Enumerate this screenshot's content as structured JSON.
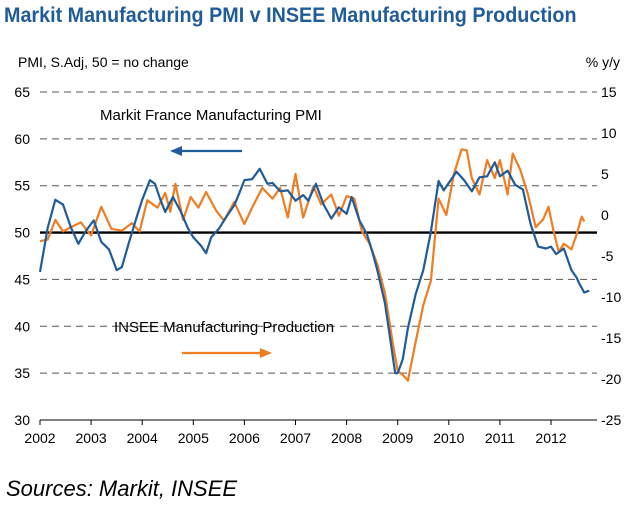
{
  "title": "Markit Manufacturing PMI v INSEE Manufacturing Production",
  "source": "Sources: Markit, INSEE",
  "colors": {
    "pmi": "#1f5c99",
    "production": "#f07d22",
    "title": "#1f5c99",
    "grid": "#555555",
    "fifty_line": "#000000"
  },
  "chart_data": {
    "type": "line",
    "title": "Markit Manufacturing PMI v INSEE Manufacturing Production",
    "left_axis": {
      "label": "PMI, S.Adj, 50 = no change",
      "ylim": [
        30,
        65
      ],
      "ticks": [
        30,
        35,
        40,
        45,
        50,
        55,
        60,
        65
      ]
    },
    "right_axis": {
      "label": "% y/y",
      "ylim": [
        -25,
        15
      ],
      "ticks": [
        -25,
        -20,
        -15,
        -10,
        -5,
        0,
        5,
        10,
        15
      ]
    },
    "x_axis": {
      "xlim": [
        2002,
        2012.9
      ],
      "tick_labels": [
        "2002",
        "2003",
        "2004",
        "2005",
        "2006",
        "2007",
        "2008",
        "2009",
        "2010",
        "2011",
        "2012"
      ]
    },
    "reference_line": {
      "axis": "left",
      "value": 50
    },
    "annotations": [
      {
        "text": "Markit France Manufacturing PMI",
        "arrow": "left",
        "series": "pmi"
      },
      {
        "text": "INSEE Manufacturing Production",
        "arrow": "right",
        "series": "production"
      }
    ],
    "series": [
      {
        "name": "Markit France Manufacturing PMI",
        "axis": "left",
        "x": [
          2002.0,
          2002.15,
          2002.3,
          2002.45,
          2002.6,
          2002.75,
          2002.9,
          2003.05,
          2003.2,
          2003.35,
          2003.5,
          2003.6,
          2003.75,
          2003.9,
          2004.0,
          2004.15,
          2004.25,
          2004.35,
          2004.45,
          2004.6,
          2004.75,
          2004.9,
          2005.0,
          2005.15,
          2005.25,
          2005.35,
          2005.5,
          2005.65,
          2005.8,
          2005.9,
          2006.0,
          2006.15,
          2006.3,
          2006.45,
          2006.55,
          2006.7,
          2006.85,
          2007.0,
          2007.15,
          2007.25,
          2007.4,
          2007.55,
          2007.7,
          2007.85,
          2008.0,
          2008.1,
          2008.25,
          2008.4,
          2008.5,
          2008.6,
          2008.75,
          2008.85,
          2008.95,
          2009.0,
          2009.1,
          2009.2,
          2009.35,
          2009.5,
          2009.65,
          2009.8,
          2009.9,
          2010.0,
          2010.15,
          2010.3,
          2010.45,
          2010.6,
          2010.75,
          2010.9,
          2011.0,
          2011.15,
          2011.3,
          2011.45,
          2011.6,
          2011.75,
          2011.9,
          2012.0,
          2012.1,
          2012.25,
          2012.4,
          2012.5,
          2012.55,
          2012.65,
          2012.75
        ],
        "values": [
          45.8,
          50.5,
          53.5,
          53.0,
          50.6,
          48.8,
          50.2,
          51.3,
          49.0,
          48.2,
          46.0,
          46.3,
          49.1,
          51.8,
          53.5,
          55.6,
          55.2,
          53.6,
          52.2,
          53.8,
          52.3,
          50.4,
          49.5,
          48.6,
          47.8,
          49.5,
          50.4,
          51.7,
          52.9,
          54.2,
          55.6,
          55.7,
          56.8,
          55.2,
          55.3,
          54.4,
          54.5,
          53.4,
          54.0,
          53.4,
          55.2,
          53.0,
          51.5,
          52.7,
          52.0,
          53.8,
          51.3,
          49.8,
          48.0,
          46.0,
          42.5,
          38.8,
          35.0,
          35.0,
          36.5,
          39.8,
          43.4,
          46.0,
          50.1,
          55.5,
          54.5,
          55.3,
          56.5,
          55.6,
          54.4,
          55.9,
          56.0,
          57.5,
          56.0,
          56.6,
          55.1,
          54.6,
          50.9,
          48.5,
          48.3,
          48.5,
          47.7,
          48.3,
          46.0,
          45.2,
          44.6,
          43.6,
          43.8
        ]
      },
      {
        "name": "INSEE Manufacturing Production",
        "axis": "right",
        "x": [
          2002.0,
          2002.15,
          2002.3,
          2002.45,
          2002.6,
          2002.8,
          2003.0,
          2003.2,
          2003.4,
          2003.6,
          2003.8,
          2003.95,
          2004.1,
          2004.3,
          2004.45,
          2004.55,
          2004.65,
          2004.8,
          2004.95,
          2005.1,
          2005.25,
          2005.45,
          2005.6,
          2005.8,
          2006.0,
          2006.15,
          2006.35,
          2006.55,
          2006.7,
          2006.85,
          2007.0,
          2007.15,
          2007.35,
          2007.5,
          2007.7,
          2007.85,
          2008.0,
          2008.15,
          2008.3,
          2008.45,
          2008.6,
          2008.75,
          2008.9,
          2009.0,
          2009.1,
          2009.2,
          2009.35,
          2009.5,
          2009.65,
          2009.8,
          2009.95,
          2010.1,
          2010.25,
          2010.35,
          2010.45,
          2010.6,
          2010.75,
          2010.9,
          2011.0,
          2011.15,
          2011.25,
          2011.4,
          2011.55,
          2011.7,
          2011.85,
          2011.95,
          2012.05,
          2012.15,
          2012.25,
          2012.4,
          2012.5,
          2012.6,
          2012.65
        ],
        "values": [
          -3.2,
          -3.0,
          -0.6,
          -2.0,
          -1.5,
          -0.9,
          -2.5,
          1.0,
          -1.7,
          -1.9,
          -1.0,
          -2.0,
          1.8,
          0.9,
          2.7,
          0.4,
          3.8,
          -0.6,
          2.2,
          0.9,
          2.8,
          0.5,
          -0.7,
          1.6,
          -1.1,
          0.9,
          3.3,
          2.0,
          3.3,
          -0.3,
          5.0,
          -0.3,
          3.5,
          1.3,
          2.5,
          -0.1,
          2.3,
          2.0,
          -2.0,
          -3.5,
          -6.0,
          -9.5,
          -15.5,
          -19.0,
          -19.5,
          -20.2,
          -15.5,
          -11.0,
          -8.0,
          2.0,
          0.0,
          5.0,
          8.0,
          7.9,
          4.5,
          2.5,
          6.7,
          4.5,
          6.7,
          2.5,
          7.5,
          5.5,
          2.5,
          -1.5,
          -0.5,
          1.0,
          -2.0,
          -4.5,
          -3.5,
          -4.2,
          -2.4,
          -0.2,
          -0.8
        ]
      }
    ]
  }
}
